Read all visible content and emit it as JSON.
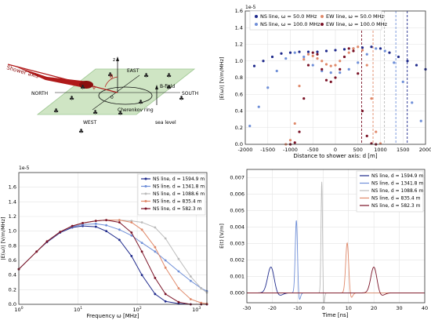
{
  "diagram": {
    "labels": {
      "shower_axis": "Shower axis",
      "z": "z",
      "theta": "θ",
      "phi": "φ",
      "origin": "0",
      "east": "EAST",
      "north": "NORTH",
      "south": "SOUTH",
      "west": "WEST",
      "bfield": "B-field",
      "cherenkov": "Cherenkov ring",
      "sea_level": "sea level"
    },
    "colors": {
      "plane": "#cfe5c4",
      "shower": "#b01a1a",
      "axis": "#111111"
    }
  },
  "chart_data": [
    {
      "type": "line",
      "id": "top-right",
      "xlabel": "Distance to shower axis: d [m]",
      "ylabel": "|E(ω)| [V/m/MHz]",
      "exponent": "1e-5",
      "xlim": [
        -2000,
        2000
      ],
      "ylim": [
        0.0,
        1.6
      ],
      "xticks": [
        -2000,
        -1500,
        -1000,
        -500,
        0,
        500,
        1000,
        1500,
        2000
      ],
      "yticks": [
        0.0,
        0.2,
        0.4,
        0.6,
        0.8,
        1.0,
        1.2,
        1.4,
        1.6
      ],
      "grid": true,
      "legend_position": "top",
      "series": [
        {
          "name": "NS line, ω = 50.0 MHz",
          "color": "#1f2a8c",
          "style": "dots",
          "x": [
            -1800,
            -1600,
            -1400,
            -1200,
            -1000,
            -800,
            -600,
            -400,
            -200,
            0,
            200,
            400,
            600,
            800,
            1000,
            1200,
            1400,
            1600,
            1800,
            2000
          ],
          "y": [
            0.94,
            1.0,
            1.05,
            1.09,
            1.1,
            1.11,
            1.11,
            1.11,
            1.12,
            1.13,
            1.14,
            1.15,
            1.16,
            1.17,
            1.15,
            1.1,
            1.05,
            1.0,
            0.95,
            0.9
          ]
        },
        {
          "name": "NS line, ω = 100.0 MHz",
          "color": "#6f8fd8",
          "style": "dots",
          "x": [
            -1900,
            -1700,
            -1500,
            -1300,
            -1100,
            -900,
            -700,
            -500,
            -300,
            -100,
            100,
            300,
            500,
            700,
            900,
            1100,
            1300,
            1500,
            1700,
            1900
          ],
          "y": [
            0.22,
            0.45,
            0.68,
            0.88,
            1.03,
            1.1,
            1.05,
            0.95,
            0.88,
            0.86,
            0.86,
            0.9,
            0.98,
            1.08,
            1.15,
            1.12,
            0.98,
            0.75,
            0.5,
            0.28
          ]
        },
        {
          "name": "EW line, ω = 50.0 MHz",
          "color": "#e0896a",
          "style": "dots",
          "x": [
            -1100,
            -1000,
            -900,
            -800,
            -700,
            -600,
            -500,
            -400,
            -300,
            -200,
            -100,
            0,
            100,
            200,
            300,
            400,
            500,
            600,
            700,
            800,
            900,
            1000
          ],
          "y": [
            0.0,
            0.05,
            0.25,
            0.7,
            1.02,
            1.08,
            1.06,
            1.03,
            1.0,
            0.96,
            0.94,
            0.95,
            1.0,
            1.05,
            1.1,
            1.15,
            1.17,
            1.13,
            0.95,
            0.55,
            0.15,
            0.01
          ]
        },
        {
          "name": "EW line, ω = 100.0 MHz",
          "color": "#7a1226",
          "style": "dots",
          "x": [
            -1000,
            -900,
            -800,
            -700,
            -600,
            -500,
            -400,
            -300,
            -200,
            -100,
            0,
            100,
            200,
            300,
            400,
            500,
            600,
            700,
            800,
            900
          ],
          "y": [
            0.0,
            0.02,
            0.15,
            0.55,
            0.95,
            1.1,
            1.08,
            0.9,
            0.77,
            0.75,
            0.8,
            0.9,
            1.05,
            1.15,
            1.12,
            0.85,
            0.4,
            0.1,
            0.01,
            0.0
          ]
        }
      ],
      "vlines": [
        {
          "x": 582.3,
          "color": "#7a1226"
        },
        {
          "x": 835.4,
          "color": "#e0896a"
        },
        {
          "x": 1088.6,
          "color": "#bbbbbb"
        },
        {
          "x": 1341.8,
          "color": "#6f8fd8"
        },
        {
          "x": 1594.9,
          "color": "#1f2a8c"
        }
      ]
    },
    {
      "type": "line",
      "id": "bottom-left",
      "xlabel": "Frequency ω [MHz]",
      "ylabel": "|E(ω)| [V/m/MHz]",
      "exponent": "1e-5",
      "xscale": "log",
      "xlim": [
        1,
        1500
      ],
      "ylim": [
        0.0,
        1.8
      ],
      "yticks": [
        0.0,
        0.2,
        0.4,
        0.6,
        0.8,
        1.0,
        1.2,
        1.4,
        1.6
      ],
      "grid": true,
      "legend_position": "top-right",
      "x": [
        1,
        2,
        3,
        5,
        8,
        12,
        20,
        30,
        50,
        80,
        120,
        200,
        300,
        500,
        800,
        1200,
        1500
      ],
      "series": [
        {
          "name": "NS line, d =  1594.9 m",
          "color": "#1f2a8c",
          "y": [
            0.48,
            0.72,
            0.85,
            0.98,
            1.05,
            1.07,
            1.06,
            1.0,
            0.88,
            0.66,
            0.4,
            0.14,
            0.04,
            0.01,
            0.0,
            0.0,
            0.0
          ]
        },
        {
          "name": "NS line, d =  1341.8 m",
          "color": "#6f8fd8",
          "y": [
            0.48,
            0.72,
            0.86,
            0.99,
            1.06,
            1.09,
            1.1,
            1.08,
            1.02,
            0.94,
            0.84,
            0.72,
            0.6,
            0.45,
            0.32,
            0.22,
            0.18
          ]
        },
        {
          "name": "NS line, d =  1088.6 m",
          "color": "#bbbbbb",
          "y": [
            0.48,
            0.72,
            0.86,
            0.99,
            1.07,
            1.11,
            1.14,
            1.15,
            1.15,
            1.14,
            1.12,
            1.05,
            0.9,
            0.62,
            0.38,
            0.22,
            0.16
          ]
        },
        {
          "name": "NS line, d =  835.4 m",
          "color": "#e0896a",
          "y": [
            0.48,
            0.72,
            0.86,
            0.99,
            1.07,
            1.11,
            1.14,
            1.15,
            1.15,
            1.12,
            1.02,
            0.78,
            0.5,
            0.22,
            0.07,
            0.02,
            0.01
          ]
        },
        {
          "name": "NS line, d =  582.3 m",
          "color": "#7a1226",
          "y": [
            0.48,
            0.72,
            0.86,
            0.99,
            1.07,
            1.11,
            1.14,
            1.15,
            1.12,
            0.98,
            0.72,
            0.36,
            0.14,
            0.03,
            0.0,
            0.0,
            0.0
          ]
        }
      ]
    },
    {
      "type": "line",
      "id": "bottom-right",
      "xlabel": "Time [ns]",
      "ylabel": "E(t) [V/m]",
      "xlim": [
        -30,
        40
      ],
      "ylim": [
        -0.0006,
        0.0075
      ],
      "xticks": [
        -30,
        -20,
        -10,
        0,
        10,
        20,
        30,
        40
      ],
      "yticks": [
        0.0,
        0.001,
        0.002,
        0.003,
        0.004,
        0.005,
        0.006,
        0.007
      ],
      "grid": true,
      "legend_position": "top-right",
      "series": [
        {
          "name": "NS line, d =  1594.9 m",
          "color": "#1f2a8c",
          "center": -20.5,
          "amp": 0.0016,
          "width": 1.3
        },
        {
          "name": "NS line, d =  1341.8 m",
          "color": "#6f8fd8",
          "center": -10.5,
          "amp": 0.0045,
          "width": 0.45
        },
        {
          "name": "NS line, d =  1088.6 m",
          "color": "#bbbbbb",
          "center": -0.5,
          "amp": 0.0069,
          "width": 0.3
        },
        {
          "name": "NS line, d =  835.4 m",
          "color": "#e0896a",
          "center": 9.5,
          "amp": 0.0031,
          "width": 0.6
        },
        {
          "name": "NS line, d =  582.3 m",
          "color": "#7a1226",
          "center": 20.0,
          "amp": 0.0016,
          "width": 1.2
        }
      ]
    }
  ]
}
